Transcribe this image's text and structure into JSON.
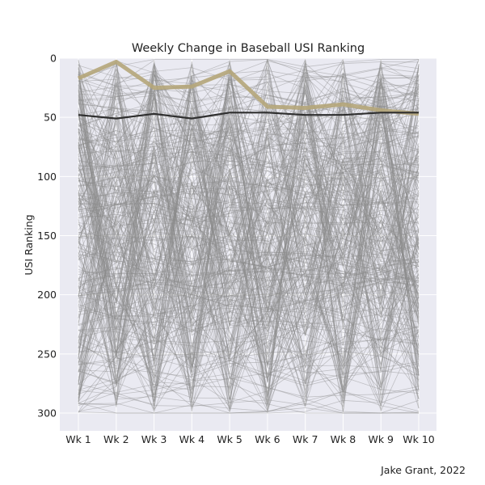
{
  "chart_data": {
    "type": "line",
    "title": "Weekly Change in Baseball USI Ranking",
    "xlabel": "",
    "ylabel": "USI Ranking",
    "categories": [
      "Wk 1",
      "Wk 2",
      "Wk 3",
      "Wk 4",
      "Wk 5",
      "Wk 6",
      "Wk 7",
      "Wk 8",
      "Wk 9",
      "Wk 10"
    ],
    "ylim": [
      0,
      300
    ],
    "y_inverted": true,
    "yticks": [
      0,
      50,
      100,
      150,
      200,
      250,
      300
    ],
    "grid": true,
    "background_series_count": 300,
    "series": [
      {
        "values": [
          17,
          3,
          25,
          24,
          11,
          41,
          42,
          39,
          44,
          47
        ],
        "color": "#b5a67a",
        "role": "highlight"
      },
      {
        "values": [
          48,
          51,
          47,
          51,
          46,
          46,
          48,
          48,
          46,
          46
        ],
        "color": "#2f2f2f",
        "role": "average"
      }
    ],
    "background_color": "#eaeaf2",
    "gridline_color": "#ffffff",
    "background_line_color": "#8c8c8c"
  },
  "credit": "Jake Grant, 2022"
}
